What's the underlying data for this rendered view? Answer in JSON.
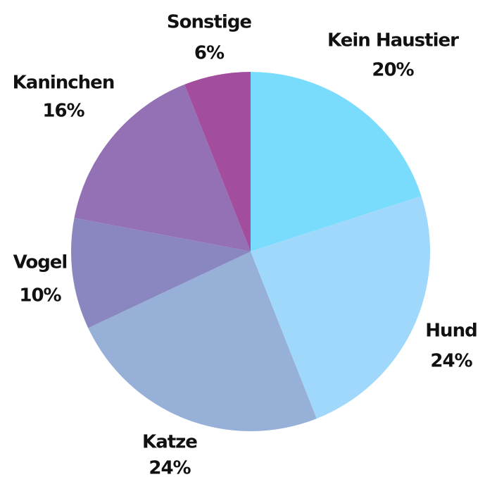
{
  "chart_data": {
    "type": "pie",
    "categories": [
      "Kein Haustier",
      "Hund",
      "Katze",
      "Vogel",
      "Kaninchen",
      "Sonstige"
    ],
    "values": [
      20,
      24,
      24,
      10,
      16,
      6
    ],
    "value_labels": [
      "20%",
      "24%",
      "24%",
      "10%",
      "16%",
      "6%"
    ],
    "colors": [
      "#79dcfd",
      "#a0d8fb",
      "#96b0d8",
      "#8a86c0",
      "#9470b4",
      "#a24d9e"
    ]
  }
}
